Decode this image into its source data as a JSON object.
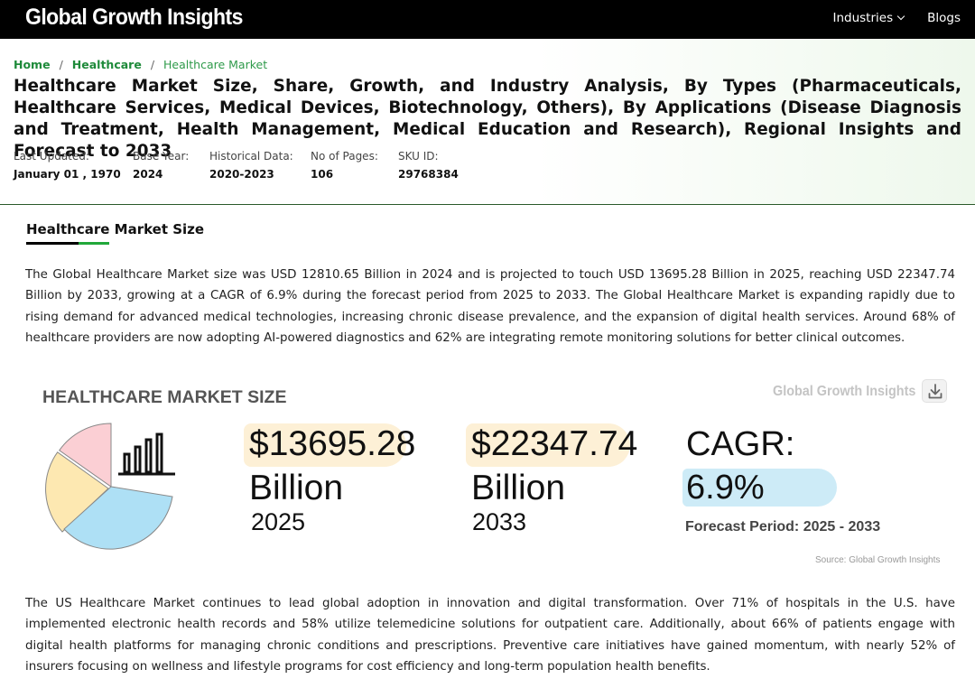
{
  "nav": {
    "brand": "Global Growth Insights",
    "industries": "Industries",
    "blogs": "Blogs"
  },
  "breadcrumb": {
    "home": "Home",
    "sep1": "/",
    "category": "Healthcare",
    "sep2": "/",
    "current": "Healthcare Market"
  },
  "report": {
    "title": "Healthcare Market Size, Share, Growth, and Industry Analysis, By Types (Pharmaceuticals, Healthcare Services, Medical Devices, Biotechnology, Others), By Applications (Disease Diagnosis and Treatment, Health Management, Medical Education and Research), Regional Insights and Forecast to 2033",
    "meta": [
      {
        "label": "Last Updated:",
        "value": "January 01 , 1970"
      },
      {
        "label": "Base Year:",
        "value": "2024"
      },
      {
        "label": "Historical Data:",
        "value": "2020-2023"
      },
      {
        "label": "No of Pages:",
        "value": "106"
      },
      {
        "label": "SKU ID:",
        "value": "29768384"
      }
    ]
  },
  "section": {
    "heading": "Healthcare Market Size",
    "para1": "The Global Healthcare Market size was USD 12810.65 Billion in 2024 and is projected to touch USD 13695.28 Billion in 2025, reaching USD 22347.74 Billion by 2033, growing at a CAGR of 6.9% during the forecast period from 2025 to 2033. The Global Healthcare Market is expanding rapidly due to rising demand for advanced medical technologies, increasing chronic disease prevalence, and the expansion of digital health services. Around 68% of healthcare providers are now adopting AI-powered diagnostics and 62% are integrating remote monitoring solutions for better clinical outcomes.",
    "para2": "The US Healthcare Market continues to lead global adoption in innovation and digital transformation. Over 71% of hospitals in the U.S. have implemented electronic health records and 58% utilize telemedicine solutions for outpatient care. Additionally, about 66% of patients engage with digital health platforms for managing chronic conditions and prescriptions. Preventive care initiatives have gained momentum, with nearly 52% of insurers focusing on wellness and lifestyle programs for cost efficiency and long-term population health benefits."
  },
  "infographic": {
    "title": "HEALTHCARE MARKET SIZE",
    "watermark": "Global Growth Insights",
    "value_2025": "$13695.28",
    "unit_2025": "Billion",
    "year_2025": "2025",
    "value_2033": "$22347.74",
    "unit_2033": "Billion",
    "year_2033": "2033",
    "cagr_label": "CAGR:",
    "cagr_value": "6.9%",
    "forecast": "Forecast Period: 2025 - 2033",
    "source": "Source: Global Growth Insights",
    "colors": {
      "pink": "#fbcfd4",
      "yellow": "#fde8b1",
      "blue": "#aee0f5",
      "amount_bg": "#fdf0d6",
      "cagr_bg": "#cdebf7"
    }
  }
}
